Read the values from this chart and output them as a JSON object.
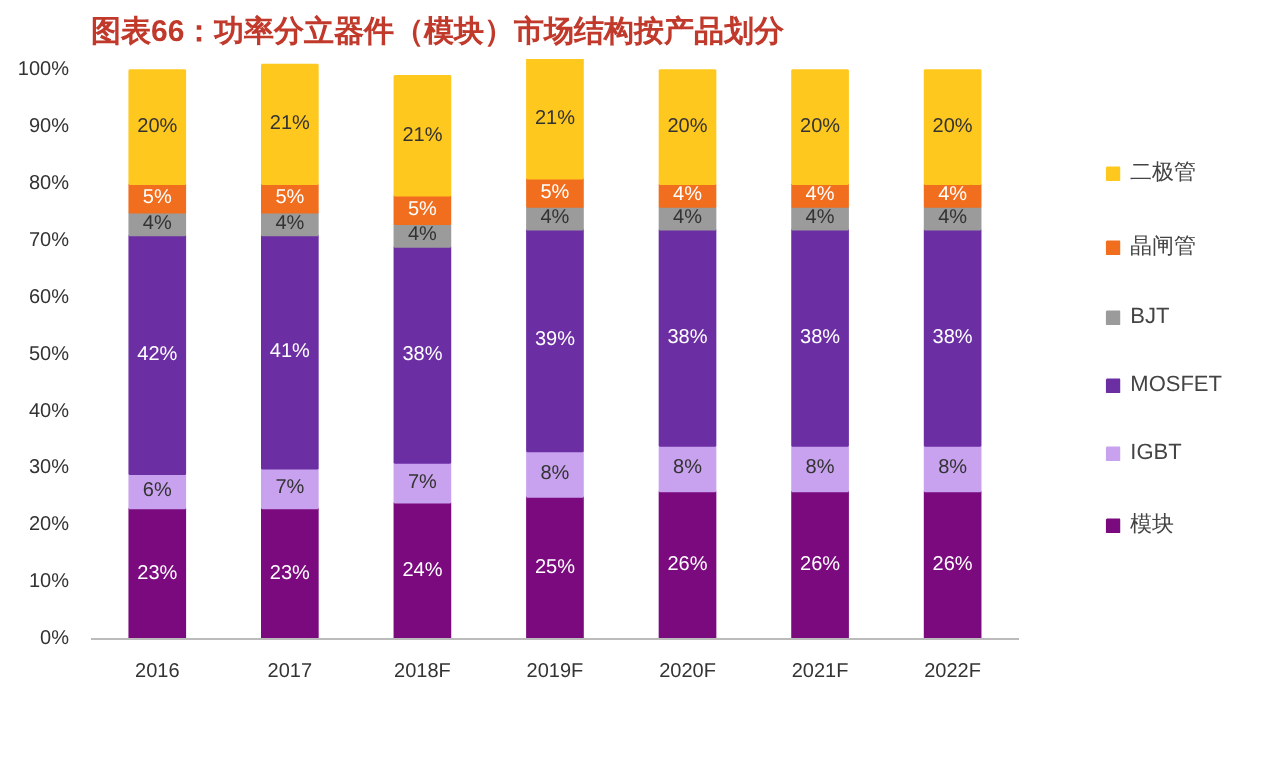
{
  "chart_data": {
    "type": "bar",
    "title": "图表66：功率分立器件（模块）市场结构按产品划分",
    "stacked": true,
    "legend": "right",
    "grid": false,
    "categories": [
      "2016",
      "2017",
      "2018F",
      "2019F",
      "2020F",
      "2021F",
      "2022F"
    ],
    "ylim": [
      0,
      102
    ],
    "yticks": [
      {
        "value": 0,
        "label": "0%"
      },
      {
        "value": 10,
        "label": "10%"
      },
      {
        "value": 20,
        "label": "20%"
      },
      {
        "value": 30,
        "label": "30%"
      },
      {
        "value": 40,
        "label": "40%"
      },
      {
        "value": 50,
        "label": "50%"
      },
      {
        "value": 60,
        "label": "60%"
      },
      {
        "value": 70,
        "label": "70%"
      },
      {
        "value": 80,
        "label": "80%"
      },
      {
        "value": 90,
        "label": "90%"
      },
      {
        "value": 100,
        "label": "100%"
      }
    ],
    "series": [
      {
        "name": "模块",
        "color": "#7a0a7e",
        "values": [
          23,
          23,
          24,
          25,
          26,
          26,
          26
        ],
        "value_labels": [
          "23%",
          "23%",
          "24%",
          "25%",
          "26%",
          "26%",
          "26%"
        ]
      },
      {
        "name": "IGBT",
        "color": "#c8a2ee",
        "values": [
          6,
          7,
          7,
          8,
          8,
          8,
          8
        ],
        "value_labels": [
          "6%",
          "7%",
          "7%",
          "8%",
          "8%",
          "8%",
          "8%"
        ]
      },
      {
        "name": "MOSFET",
        "color": "#6b2fa3",
        "values": [
          42,
          41,
          38,
          39,
          38,
          38,
          38
        ],
        "value_labels": [
          "42%",
          "41%",
          "38%",
          "39%",
          "38%",
          "38%",
          "38%"
        ]
      },
      {
        "name": "BJT",
        "color": "#9b9b9b",
        "values": [
          4,
          4,
          4,
          4,
          4,
          4,
          4
        ],
        "value_labels": [
          "4%",
          "4%",
          "4%",
          "4%",
          "4%",
          "4%",
          "4%"
        ]
      },
      {
        "name": "晶闸管",
        "color": "#f06e1e",
        "values": [
          5,
          5,
          5,
          5,
          4,
          4,
          4
        ],
        "value_labels": [
          "5%",
          "5%",
          "5%",
          "5%",
          "4%",
          "4%",
          "4%"
        ]
      },
      {
        "name": "二极管",
        "color": "#ffc81e",
        "values": [
          20,
          21,
          21,
          21,
          20,
          20,
          20
        ],
        "value_labels": [
          "20%",
          "21%",
          "21%",
          "21%",
          "20%",
          "20%",
          "20%"
        ]
      }
    ]
  }
}
